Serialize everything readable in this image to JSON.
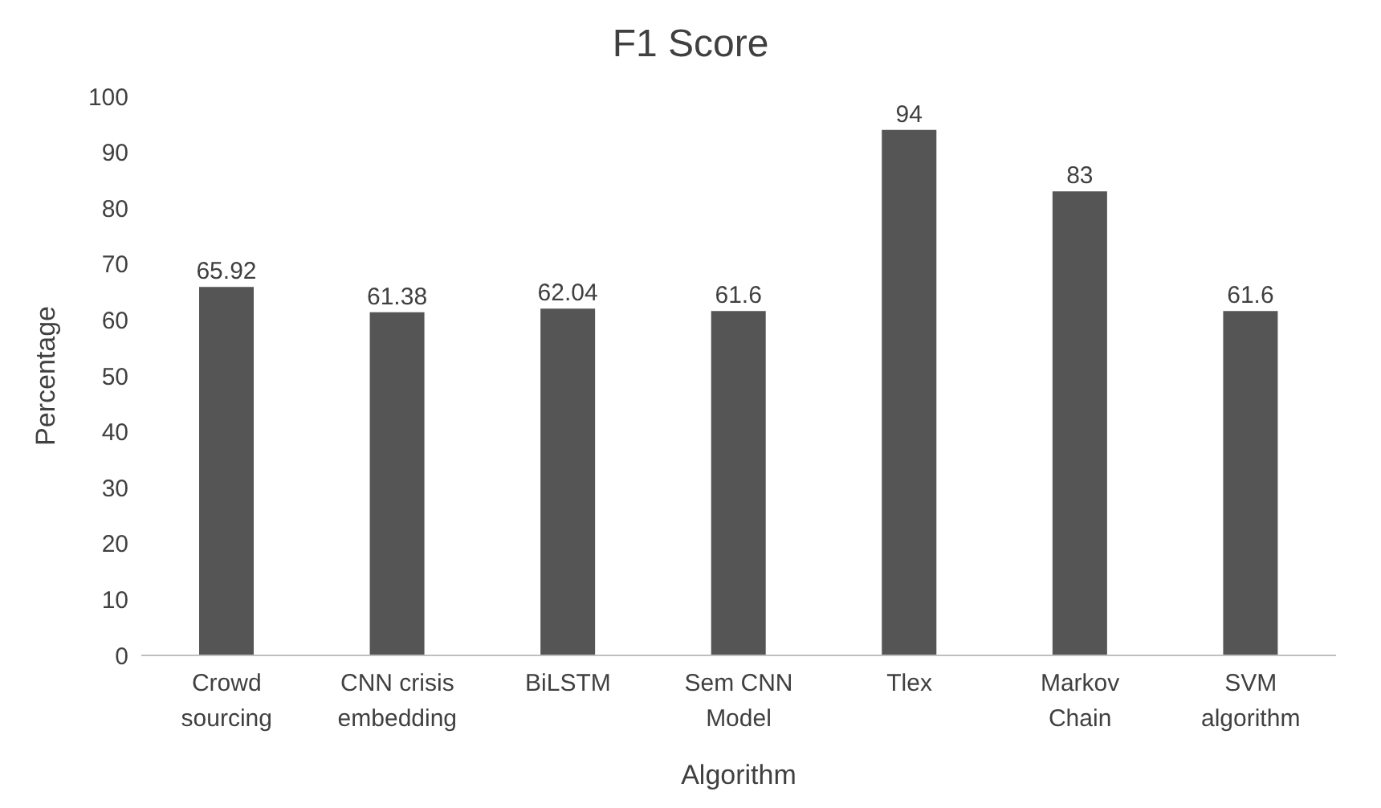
{
  "chart_data": {
    "type": "bar",
    "title": "F1 Score",
    "xlabel": "Algorithm",
    "ylabel": "Percentage",
    "categories": [
      "Crowd sourcing",
      "CNN crisis embedding",
      "BiLSTM",
      "Sem CNN Model",
      "Tlex",
      "Markov Chain",
      "SVM algorithm"
    ],
    "values": [
      65.92,
      61.38,
      62.04,
      61.6,
      94,
      83,
      61.6
    ],
    "color": "#555555",
    "ylim": [
      0,
      100
    ],
    "yticks": [
      0,
      10,
      20,
      30,
      40,
      50,
      60,
      70,
      80,
      90,
      100
    ],
    "data_labels": true
  }
}
